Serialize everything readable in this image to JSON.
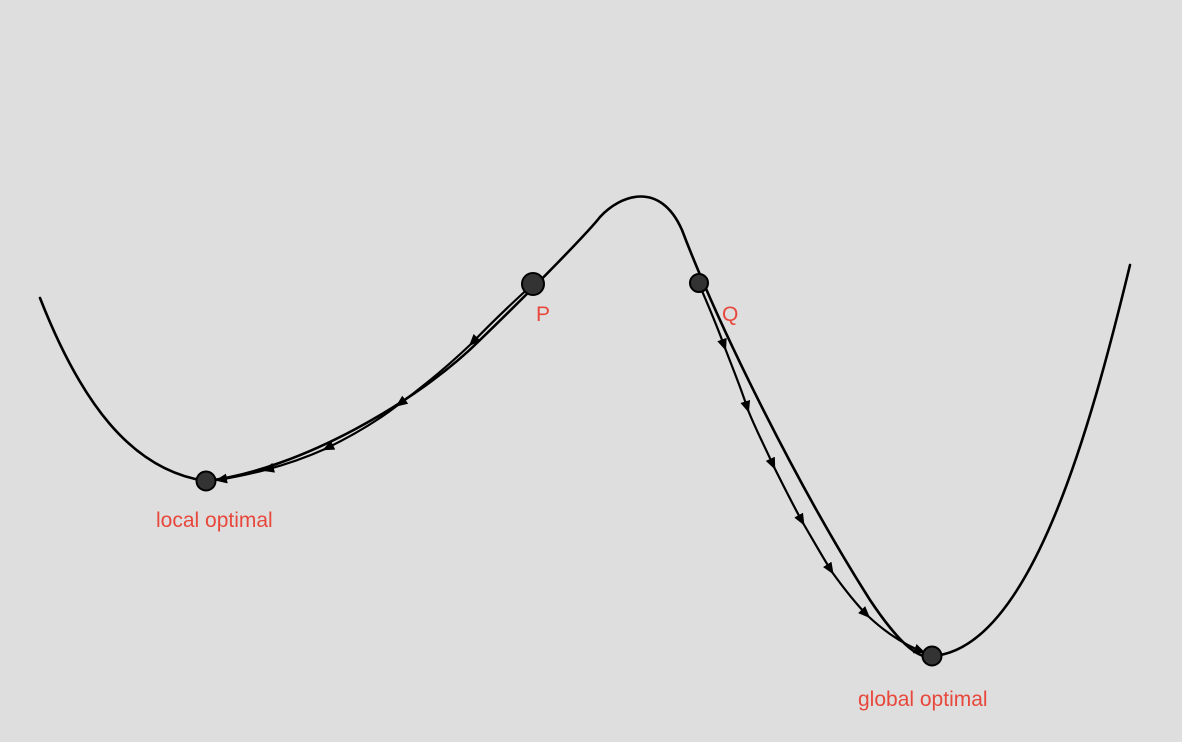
{
  "colors": {
    "background": "#dedede",
    "curve": "#000000",
    "point_fill": "#333333",
    "point_stroke": "#000000",
    "label": "#e8483c"
  },
  "labels": {
    "point_p": "P",
    "point_q": "Q",
    "local_optimum": "local optimal",
    "global_optimum": "global optimal"
  }
}
